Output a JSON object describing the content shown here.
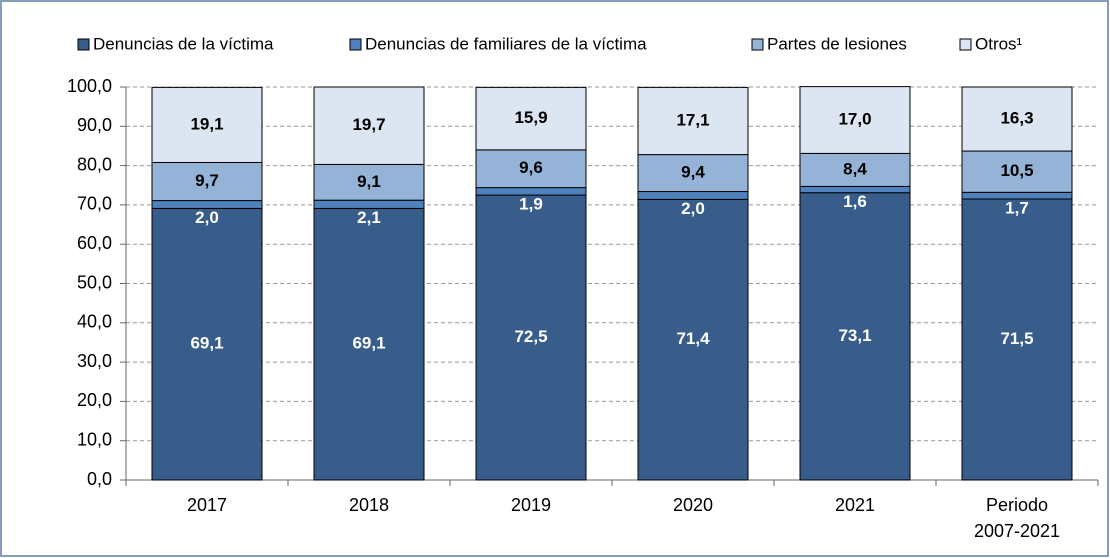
{
  "chart_data": {
    "type": "bar",
    "stacked": true,
    "categories": [
      "2017",
      "2018",
      "2019",
      "2020",
      "2021",
      "Periodo 2007-2021"
    ],
    "series": [
      {
        "name": "Denuncias de la víctima",
        "color": "#385d8a",
        "label_color": "#ffffff",
        "values": [
          69.1,
          69.1,
          72.5,
          71.4,
          73.1,
          71.5
        ],
        "value_labels": [
          "69,1",
          "69,1",
          "72,5",
          "71,4",
          "73,1",
          "71,5"
        ]
      },
      {
        "name": "Denuncias de familiares de la víctima",
        "color": "#4f81bd",
        "label_color": "#ffffff",
        "values": [
          2.0,
          2.1,
          1.9,
          2.0,
          1.6,
          1.7
        ],
        "value_labels": [
          "2,0",
          "2,1",
          "1,9",
          "2,0",
          "1,6",
          "1,7"
        ]
      },
      {
        "name": "Partes de lesiones",
        "color": "#95b3d7",
        "label_color": "#000000",
        "values": [
          9.7,
          9.1,
          9.6,
          9.4,
          8.4,
          10.5
        ],
        "value_labels": [
          "9,7",
          "9,1",
          "9,6",
          "9,4",
          "8,4",
          "10,5"
        ]
      },
      {
        "name": "Otros¹",
        "color": "#dce6f2",
        "label_color": "#000000",
        "values": [
          19.1,
          19.7,
          15.9,
          17.1,
          17.0,
          16.3
        ],
        "value_labels": [
          "19,1",
          "19,7",
          "15,9",
          "17,1",
          "17,0",
          "16,3"
        ]
      }
    ],
    "ylim": [
      0,
      100
    ],
    "yticks": [
      {
        "value": 0,
        "label": "0,0"
      },
      {
        "value": 10,
        "label": "10,0"
      },
      {
        "value": 20,
        "label": "20,0"
      },
      {
        "value": 30,
        "label": "30,0"
      },
      {
        "value": 40,
        "label": "40,0"
      },
      {
        "value": 50,
        "label": "50,0"
      },
      {
        "value": 60,
        "label": "60,0"
      },
      {
        "value": 70,
        "label": "70,0"
      },
      {
        "value": 80,
        "label": "80,0"
      },
      {
        "value": 90,
        "label": "90,0"
      },
      {
        "value": 100,
        "label": "100,0"
      }
    ],
    "grid": true,
    "legend": "top"
  }
}
